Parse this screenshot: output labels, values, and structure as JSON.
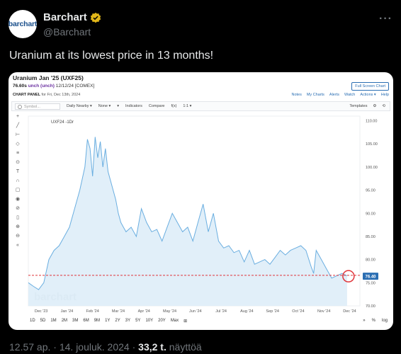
{
  "tweet": {
    "display_name": "Barchart",
    "handle": "@Barchart",
    "avatar_text": "barchart",
    "text": "Uranium at its lowest price in 13 months!",
    "time": "12.57 ap.",
    "sep": "·",
    "date": "14. jouluk. 2024",
    "sep2": "·",
    "views": "33,2 t.",
    "views_label": "näyttöä",
    "more": "···"
  },
  "card": {
    "title": "Uranium Jan '25 (UXF25)",
    "price": "76.60s",
    "change": "unch (unch)",
    "date_exchange": "12/12/24 [COMEX]",
    "panel_label": "CHART PANEL",
    "panel_date": "for Fri, Dec 13th, 2024",
    "fullscreen": "Full Screen Chart",
    "links": [
      "Notes",
      "My Charts",
      "Alerts",
      "Watch",
      "Actions ▾",
      "Help"
    ],
    "symbol_placeholder": "Symbol...",
    "toolbar": [
      "Daily Nearby ▾",
      "None ▾",
      "▾",
      "Indicators",
      "Compare",
      "f(x)",
      "1:1 ▾"
    ],
    "toolbar_right": [
      "Templates",
      "⚙",
      "⟲"
    ],
    "watermark": "barchart",
    "legend": "UXF24 -1Dr",
    "periods": [
      "1D",
      "5D",
      "1M",
      "2M",
      "3M",
      "6M",
      "9M",
      "1Y",
      "2Y",
      "3Y",
      "5Y",
      "10Y",
      "20Y",
      "Max",
      "⊞"
    ],
    "bottom_right": [
      "»",
      "%",
      "log"
    ]
  },
  "chart_data": {
    "type": "area",
    "line_color": "#6aaee0",
    "fill_color": "#dcecf8",
    "current_value_label": "76.40",
    "current_value": 76.4,
    "reference_line": 76.6,
    "reference_color": "#e0353b",
    "ylim": [
      70,
      111
    ],
    "yticks": [
      70.0,
      75.0,
      80.0,
      85.0,
      90.0,
      95.0,
      100.0,
      105.0,
      110.0
    ],
    "ytick_labels": [
      "70.00",
      "75.00",
      "80.00",
      "85.00",
      "90.00",
      "95.00",
      "100.00",
      "105.00",
      "110.00"
    ],
    "xticks": [
      "Dec '23",
      "Jan '24",
      "Feb '24",
      "Mar '24",
      "Apr '24",
      "May '24",
      "Jun '24",
      "Jul '24",
      "Aug '24",
      "Sep '24",
      "Oct '24",
      "Nov '24",
      "Dec '24"
    ],
    "x": [
      0,
      0.2,
      0.4,
      0.6,
      0.8,
      1.0,
      1.2,
      1.4,
      1.6,
      1.8,
      2.0,
      2.2,
      2.3,
      2.4,
      2.5,
      2.6,
      2.7,
      2.8,
      2.9,
      3.0,
      3.1,
      3.2,
      3.3,
      3.4,
      3.5,
      3.6,
      3.7,
      3.8,
      4.0,
      4.2,
      4.4,
      4.6,
      4.8,
      5.0,
      5.2,
      5.4,
      5.6,
      5.8,
      6.0,
      6.2,
      6.4,
      6.6,
      6.8,
      7.0,
      7.2,
      7.4,
      7.6,
      7.8,
      8.0,
      8.2,
      8.4,
      8.6,
      8.8,
      9.0,
      9.2,
      9.4,
      9.6,
      9.8,
      10.0,
      10.2,
      10.4,
      10.6,
      10.8,
      11.0,
      11.1,
      11.2,
      11.4,
      11.6,
      11.8,
      12.0,
      12.2,
      12.4
    ],
    "y": [
      75.0,
      74.2,
      73.5,
      75.0,
      80.0,
      82.0,
      83.0,
      85.0,
      87.0,
      91.0,
      95.0,
      100.0,
      106.0,
      104.0,
      98.0,
      106.5,
      102.0,
      105.5,
      100.0,
      104.0,
      99.0,
      97.0,
      95.0,
      93.0,
      90.0,
      88.0,
      87.0,
      86.0,
      87.0,
      85.0,
      91.0,
      88.0,
      86.0,
      86.5,
      84.0,
      87.0,
      90.0,
      88.0,
      86.0,
      87.0,
      84.0,
      88.0,
      92.0,
      86.0,
      90.0,
      84.0,
      82.5,
      83.0,
      81.5,
      82.0,
      79.5,
      82.0,
      79.0,
      79.5,
      80.0,
      79.0,
      80.5,
      82.0,
      81.0,
      82.0,
      82.5,
      83.0,
      82.0,
      78.5,
      77.0,
      82.0,
      80.0,
      78.0,
      76.0,
      76.5,
      77.0,
      76.5
    ]
  }
}
